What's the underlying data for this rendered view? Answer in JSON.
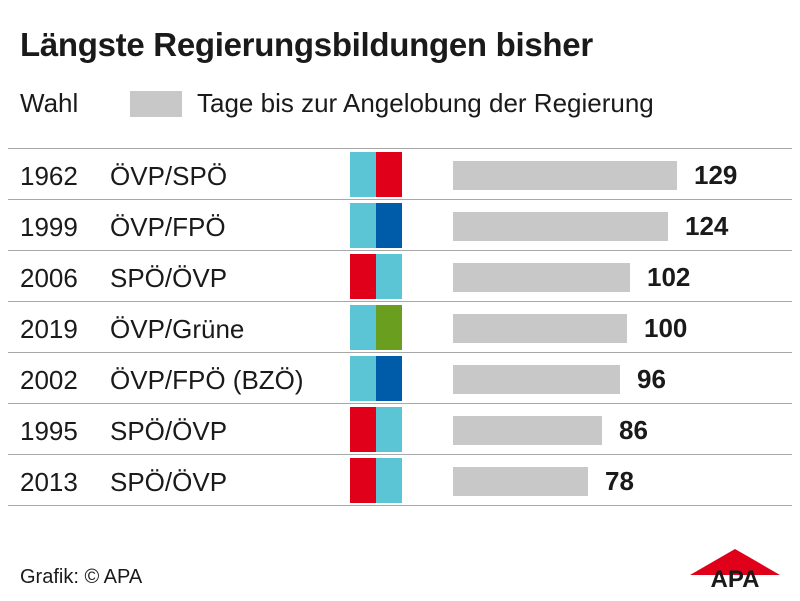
{
  "title": "Längste Regierungsbildungen bisher",
  "legend": {
    "label": "Wahl",
    "series_text": "Tage bis zur Angelobung der Regierung",
    "series_color": "#c8c8c8"
  },
  "party_colors": {
    "ÖVP": "#5bc4d5",
    "SPÖ": "#e0001a",
    "FPÖ": "#005ba8",
    "Grüne": "#6a9e1f"
  },
  "chart_data": {
    "type": "bar",
    "orientation": "horizontal",
    "title": "Längste Regierungsbildungen bisher",
    "series": [
      {
        "name": "Tage bis zur Angelobung der Regierung",
        "values": [
          129,
          124,
          102,
          100,
          96,
          86,
          78
        ]
      }
    ],
    "categories": [
      "1962",
      "1999",
      "2006",
      "2019",
      "2002",
      "1995",
      "2013"
    ],
    "rows": [
      {
        "year": "1962",
        "coalition": "ÖVP/SPÖ",
        "colors": [
          "#5bc4d5",
          "#e0001a"
        ],
        "days": 129
      },
      {
        "year": "1999",
        "coalition": "ÖVP/FPÖ",
        "colors": [
          "#5bc4d5",
          "#005ba8"
        ],
        "days": 124
      },
      {
        "year": "2006",
        "coalition": "SPÖ/ÖVP",
        "colors": [
          "#e0001a",
          "#5bc4d5"
        ],
        "days": 102
      },
      {
        "year": "2019",
        "coalition": "ÖVP/Grüne",
        "colors": [
          "#5bc4d5",
          "#6a9e1f"
        ],
        "days": 100
      },
      {
        "year": "2002",
        "coalition": "ÖVP/FPÖ (BZÖ)",
        "colors": [
          "#5bc4d5",
          "#005ba8"
        ],
        "days": 96
      },
      {
        "year": "1995",
        "coalition": "SPÖ/ÖVP",
        "colors": [
          "#e0001a",
          "#5bc4d5"
        ],
        "days": 86
      },
      {
        "year": "2013",
        "coalition": "SPÖ/ÖVP",
        "colors": [
          "#e0001a",
          "#5bc4d5"
        ],
        "days": 78
      }
    ],
    "xlim": [
      0,
      129
    ],
    "grid": false
  },
  "footer": {
    "source": "Grafik: © APA",
    "logo_text": "APA",
    "logo_color": "#e0001a"
  }
}
